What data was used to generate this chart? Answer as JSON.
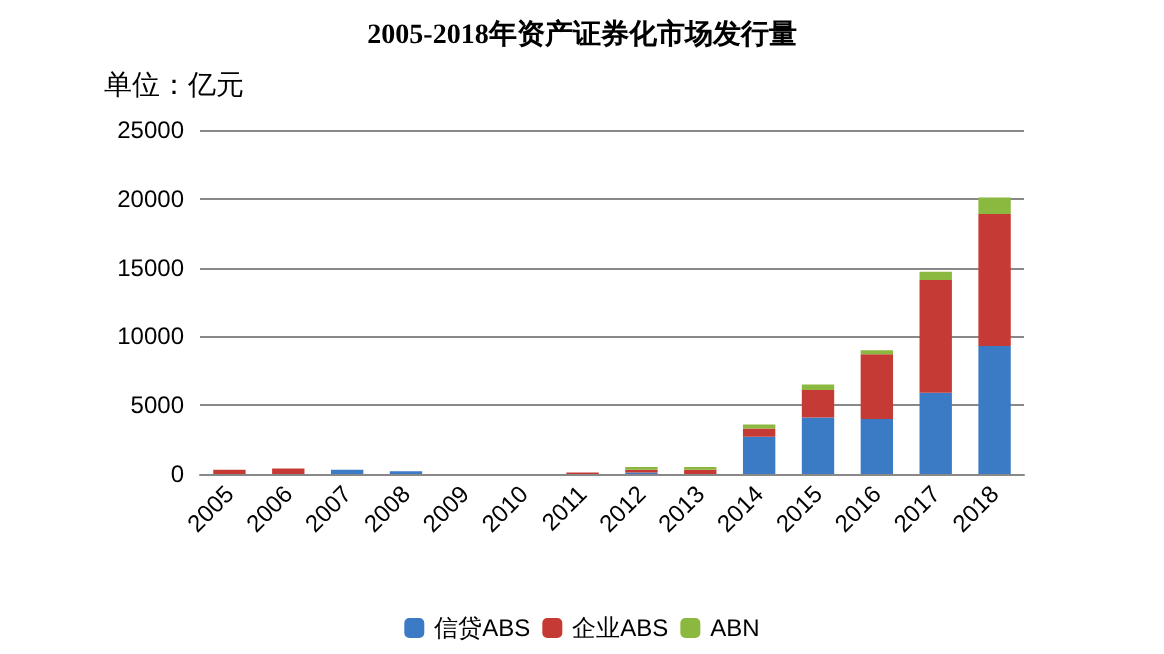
{
  "chart_data": {
    "type": "bar",
    "title": "2005-2018年资产证券化市场发行量",
    "ylabel": "单位：亿元",
    "categories": [
      "2005",
      "2006",
      "2007",
      "2008",
      "2009",
      "2010",
      "2011",
      "2012",
      "2013",
      "2014",
      "2015",
      "2016",
      "2017",
      "2018"
    ],
    "series": [
      {
        "name": "信贷ABS",
        "color": "#3b7bc6",
        "values": [
          0,
          0,
          300,
          200,
          0,
          0,
          0,
          100,
          0,
          2700,
          4100,
          4000,
          5900,
          9300
        ]
      },
      {
        "name": "企业ABS",
        "color": "#c63a36",
        "values": [
          300,
          400,
          0,
          0,
          0,
          0,
          100,
          200,
          300,
          600,
          2000,
          4700,
          8200,
          9600
        ]
      },
      {
        "name": "ABN",
        "color": "#8bb83f",
        "values": [
          0,
          0,
          0,
          0,
          0,
          0,
          0,
          200,
          200,
          300,
          400,
          300,
          600,
          1200
        ]
      }
    ],
    "stacked": true,
    "ylim": [
      0,
      25000
    ],
    "yticks": [
      0,
      5000,
      10000,
      15000,
      20000,
      25000
    ],
    "grid": "y",
    "legend": "bottom"
  }
}
